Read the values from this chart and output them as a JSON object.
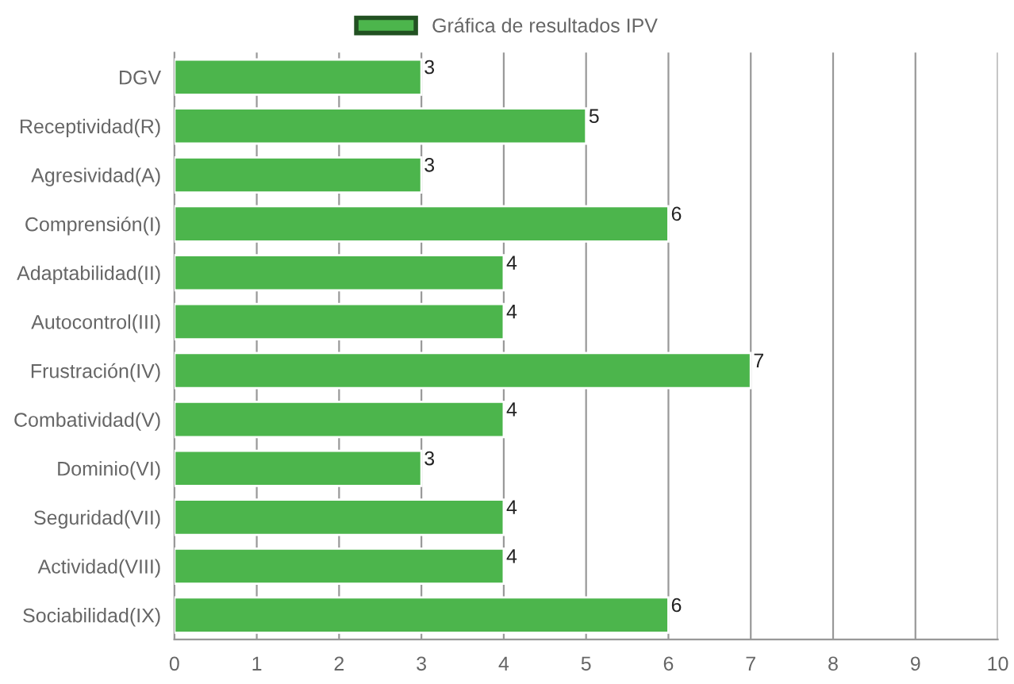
{
  "chart_data": {
    "type": "bar",
    "orientation": "horizontal",
    "categories": [
      "DGV",
      "Receptividad(R)",
      "Agresividad(A)",
      "Comprensión(I)",
      "Adaptabilidad(II)",
      "Autocontrol(III)",
      "Frustración(IV)",
      "Combatividad(V)",
      "Dominio(VI)",
      "Seguridad(VII)",
      "Actividad(VIII)",
      "Sociabilidad(IX)"
    ],
    "series": [
      {
        "name": "Gráfica de resultados IPV",
        "color": "#4cb54c",
        "values": [
          3,
          5,
          3,
          6,
          4,
          4,
          7,
          4,
          3,
          4,
          4,
          6
        ]
      }
    ],
    "xlim": [
      0,
      10
    ],
    "xticks": [
      0,
      1,
      2,
      3,
      4,
      5,
      6,
      7,
      8,
      9,
      10
    ],
    "grid": "x",
    "legend": "top",
    "data_labels": true
  }
}
